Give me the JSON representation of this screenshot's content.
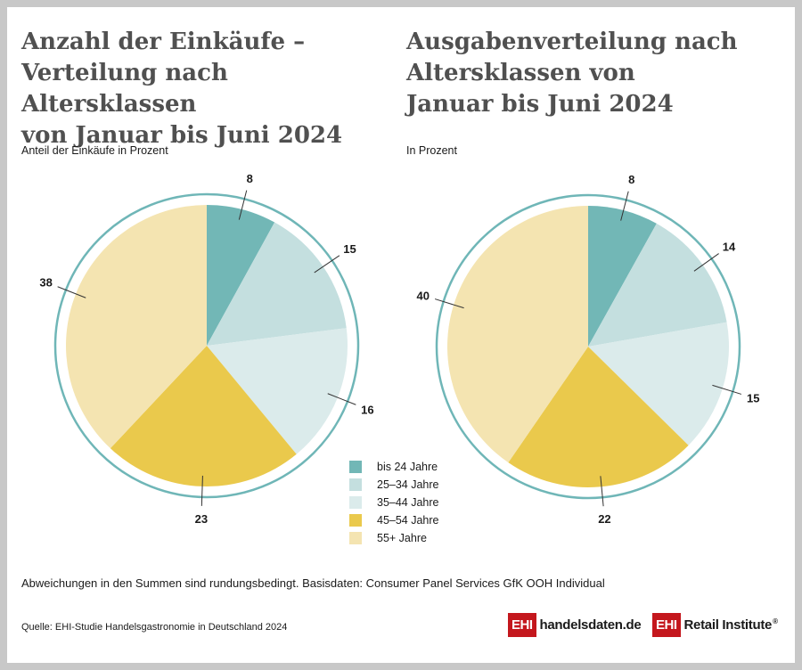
{
  "left": {
    "title": [
      "Anzahl der Einkäufe –",
      "Verteilung nach Altersklassen",
      "von Januar bis Juni 2024"
    ],
    "subtitle": "Anteil der Einkäufe in Prozent"
  },
  "right": {
    "title": [
      "Ausgabenverteilung nach",
      "Altersklassen von",
      "Januar bis Juni 2024"
    ],
    "subtitle": "In Prozent"
  },
  "legend": [
    {
      "label": "bis 24 Jahre",
      "color": "#72b7b6"
    },
    {
      "label": "25–34 Jahre",
      "color": "#c4dfdf"
    },
    {
      "label": "35–44 Jahre",
      "color": "#dbebeb"
    },
    {
      "label": "45–54 Jahre",
      "color": "#eac94c"
    },
    {
      "label": "55+ Jahre",
      "color": "#f4e4b1"
    }
  ],
  "note": "Abweichungen in den Summen sind rundungsbedingt. Basisdaten: Consumer Panel Services GfK OOH Individual",
  "source": "Quelle: EHI-Studie Handelsgastronomie in Deutschland 2024",
  "logos": {
    "ehi": "EHI",
    "handelsdaten": "handelsdaten.de",
    "retail": "Retail Institute",
    "reg": "®"
  },
  "ring_color": "#6fb6b7",
  "chart_data": [
    {
      "type": "pie",
      "title": "Anzahl der Einkäufe – Verteilung nach Altersklassen von Januar bis Juni 2024",
      "subtitle": "Anteil der Einkäufe in Prozent",
      "categories": [
        "bis 24 Jahre",
        "25–34 Jahre",
        "35–44 Jahre",
        "45–54 Jahre",
        "55+ Jahre"
      ],
      "values": [
        8,
        15,
        16,
        23,
        38
      ],
      "colors": [
        "#72b7b6",
        "#c4dfdf",
        "#dbebeb",
        "#eac94c",
        "#f4e4b1"
      ]
    },
    {
      "type": "pie",
      "title": "Ausgabenverteilung nach Altersklassen von Januar bis Juni 2024",
      "subtitle": "In Prozent",
      "categories": [
        "bis 24 Jahre",
        "25–34 Jahre",
        "35–44 Jahre",
        "45–54 Jahre",
        "55+ Jahre"
      ],
      "values": [
        8,
        14,
        15,
        22,
        40
      ],
      "colors": [
        "#72b7b6",
        "#c4dfdf",
        "#dbebeb",
        "#eac94c",
        "#f4e4b1"
      ]
    }
  ]
}
